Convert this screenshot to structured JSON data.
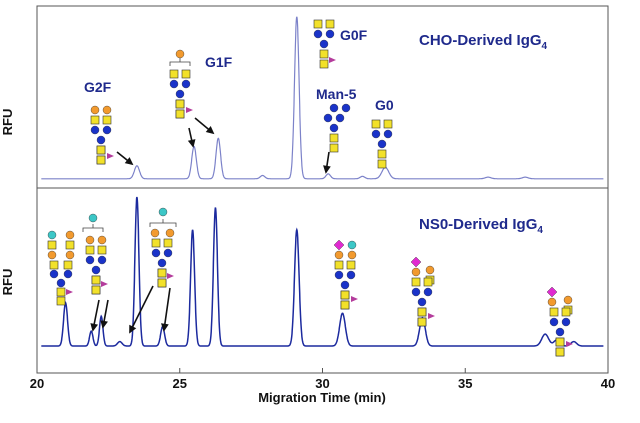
{
  "chart_data": {
    "type": "line",
    "xlabel": "Migration Time (min)",
    "xlim": [
      20,
      40
    ],
    "xticks": [
      "20",
      "25",
      "30",
      "35",
      "40"
    ],
    "panels": [
      {
        "title_main": "CHO-Derived IgG",
        "title_sub": "4",
        "ylabel": "RFU",
        "baseline": 0.02,
        "peaks": [
          {
            "x": 23.5,
            "h": 0.08,
            "w": 0.09
          },
          {
            "x": 25.5,
            "h": 0.2,
            "w": 0.08
          },
          {
            "x": 26.35,
            "h": 0.25,
            "w": 0.08
          },
          {
            "x": 27.9,
            "h": 0.02,
            "w": 0.08
          },
          {
            "x": 29.1,
            "h": 1.0,
            "w": 0.08
          },
          {
            "x": 30.2,
            "h": 0.03,
            "w": 0.08
          },
          {
            "x": 31.4,
            "h": 0.015,
            "w": 0.08
          },
          {
            "x": 32.2,
            "h": 0.07,
            "w": 0.12
          },
          {
            "x": 35.8,
            "h": 0.01,
            "w": 0.1
          },
          {
            "x": 37.1,
            "h": 0.01,
            "w": 0.1
          }
        ],
        "labels": [
          {
            "text": "G2F",
            "x": 22.3,
            "y": 0.62
          },
          {
            "text": "G1F",
            "x": 25.7,
            "y": 0.72
          },
          {
            "text": "G0F",
            "x": 30.1,
            "y": 0.88
          },
          {
            "text": "Man-5",
            "x": 30.5,
            "y": 0.52
          },
          {
            "text": "G0",
            "x": 32.1,
            "y": 0.47
          }
        ]
      },
      {
        "title_main": "NS0-Derived IgG",
        "title_sub": "4",
        "ylabel": "RFU",
        "baseline": 0.04,
        "peaks": [
          {
            "x": 21.0,
            "h": 0.29,
            "w": 0.07
          },
          {
            "x": 21.9,
            "h": 0.1,
            "w": 0.06
          },
          {
            "x": 22.25,
            "h": 0.2,
            "w": 0.06
          },
          {
            "x": 22.9,
            "h": 0.03,
            "w": 0.08
          },
          {
            "x": 23.5,
            "h": 1.0,
            "w": 0.07
          },
          {
            "x": 24.4,
            "h": 0.13,
            "w": 0.07
          },
          {
            "x": 25.45,
            "h": 0.78,
            "w": 0.07
          },
          {
            "x": 26.25,
            "h": 0.93,
            "w": 0.07
          },
          {
            "x": 29.1,
            "h": 0.78,
            "w": 0.08
          },
          {
            "x": 30.7,
            "h": 0.22,
            "w": 0.1
          },
          {
            "x": 33.5,
            "h": 0.19,
            "w": 0.1
          },
          {
            "x": 37.8,
            "h": 0.08,
            "w": 0.12
          },
          {
            "x": 38.2,
            "h": 0.04,
            "w": 0.1
          },
          {
            "x": 38.8,
            "h": 0.03,
            "w": 0.1
          }
        ]
      }
    ]
  }
}
